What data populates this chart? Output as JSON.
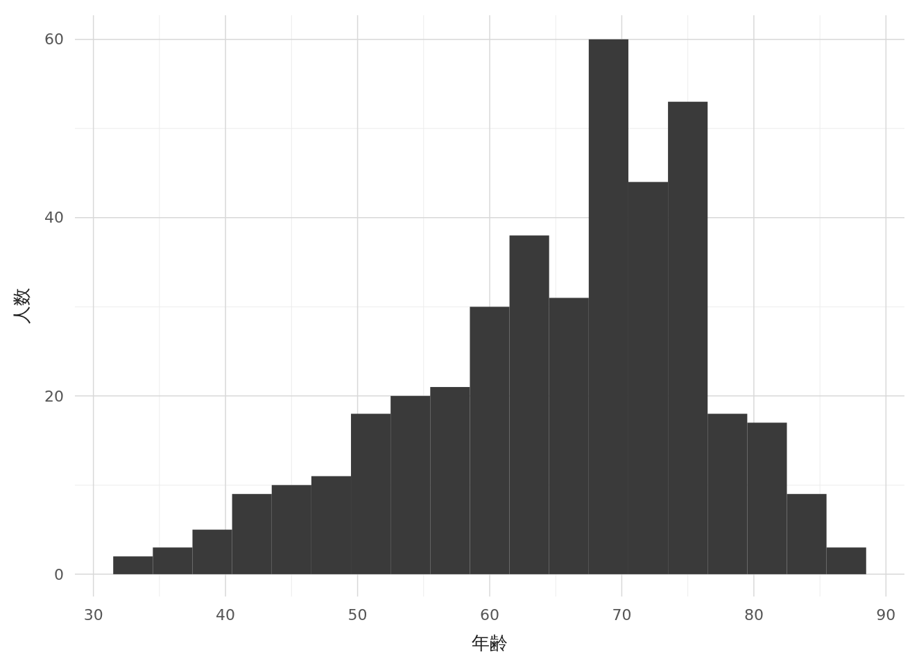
{
  "chart_data": {
    "type": "histogram",
    "xlabel": "年齢",
    "ylabel": "人数",
    "bins": [
      31.5,
      34.5,
      37.5,
      40.5,
      43.5,
      46.5,
      49.5,
      52.5,
      55.5,
      58.5,
      61.5,
      64.5,
      67.5,
      70.5,
      73.5,
      76.5,
      79.5,
      82.5,
      85.5,
      88.5
    ],
    "values": [
      2,
      3,
      5,
      9,
      10,
      11,
      18,
      20,
      21,
      30,
      38,
      31,
      60,
      44,
      53,
      18,
      17,
      9,
      3
    ],
    "color": "#3a3a3a",
    "xlim": [
      28.6,
      91.4
    ],
    "xticks": [
      30,
      40,
      50,
      60,
      70,
      80,
      90
    ],
    "ylim": [
      -2.5,
      62.7
    ],
    "yticks": [
      0,
      20,
      40,
      60
    ],
    "grid": true
  }
}
